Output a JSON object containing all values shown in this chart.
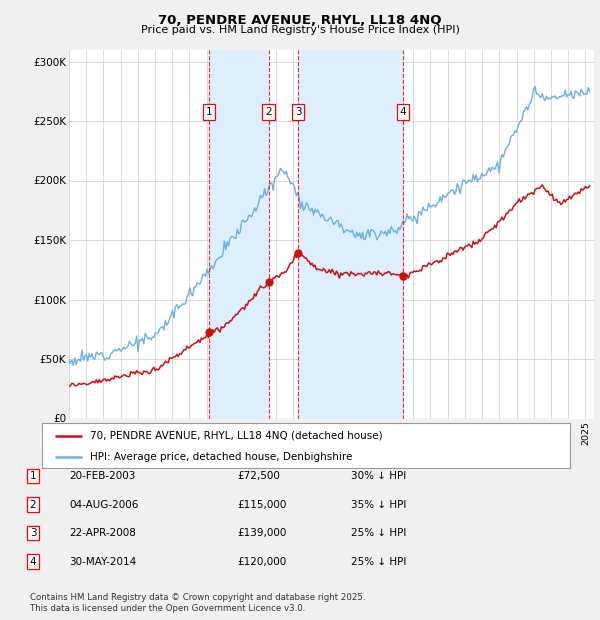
{
  "title": "70, PENDRE AVENUE, RHYL, LL18 4NQ",
  "subtitle": "Price paid vs. HM Land Registry's House Price Index (HPI)",
  "xlim_start": 1995.0,
  "xlim_end": 2025.5,
  "ylim": [
    0,
    310000
  ],
  "yticks": [
    0,
    50000,
    100000,
    150000,
    200000,
    250000,
    300000
  ],
  "ytick_labels": [
    "£0",
    "£50K",
    "£100K",
    "£150K",
    "£200K",
    "£250K",
    "£300K"
  ],
  "background_color": "#f0f0f0",
  "plot_bg_color": "#ffffff",
  "sale_events": [
    {
      "num": 1,
      "date_dec": 2003.13,
      "price": 72500,
      "label": "20-FEB-2003",
      "price_str": "£72,500",
      "pct": "30% ↓ HPI"
    },
    {
      "num": 2,
      "date_dec": 2006.59,
      "price": 115000,
      "label": "04-AUG-2006",
      "price_str": "£115,000",
      "pct": "35% ↓ HPI"
    },
    {
      "num": 3,
      "date_dec": 2008.31,
      "price": 139000,
      "label": "22-APR-2008",
      "price_str": "£139,000",
      "pct": "25% ↓ HPI"
    },
    {
      "num": 4,
      "date_dec": 2014.41,
      "price": 120000,
      "label": "30-MAY-2014",
      "price_str": "£120,000",
      "pct": "25% ↓ HPI"
    }
  ],
  "legend_line1": "70, PENDRE AVENUE, RHYL, LL18 4NQ (detached house)",
  "legend_line2": "HPI: Average price, detached house, Denbighshire",
  "footer": "Contains HM Land Registry data © Crown copyright and database right 2025.\nThis data is licensed under the Open Government Licence v3.0.",
  "hpi_color": "#6ab0e0",
  "sale_color": "#cc1111",
  "shade_color": "#ddeeff",
  "grid_color": "#cccccc"
}
